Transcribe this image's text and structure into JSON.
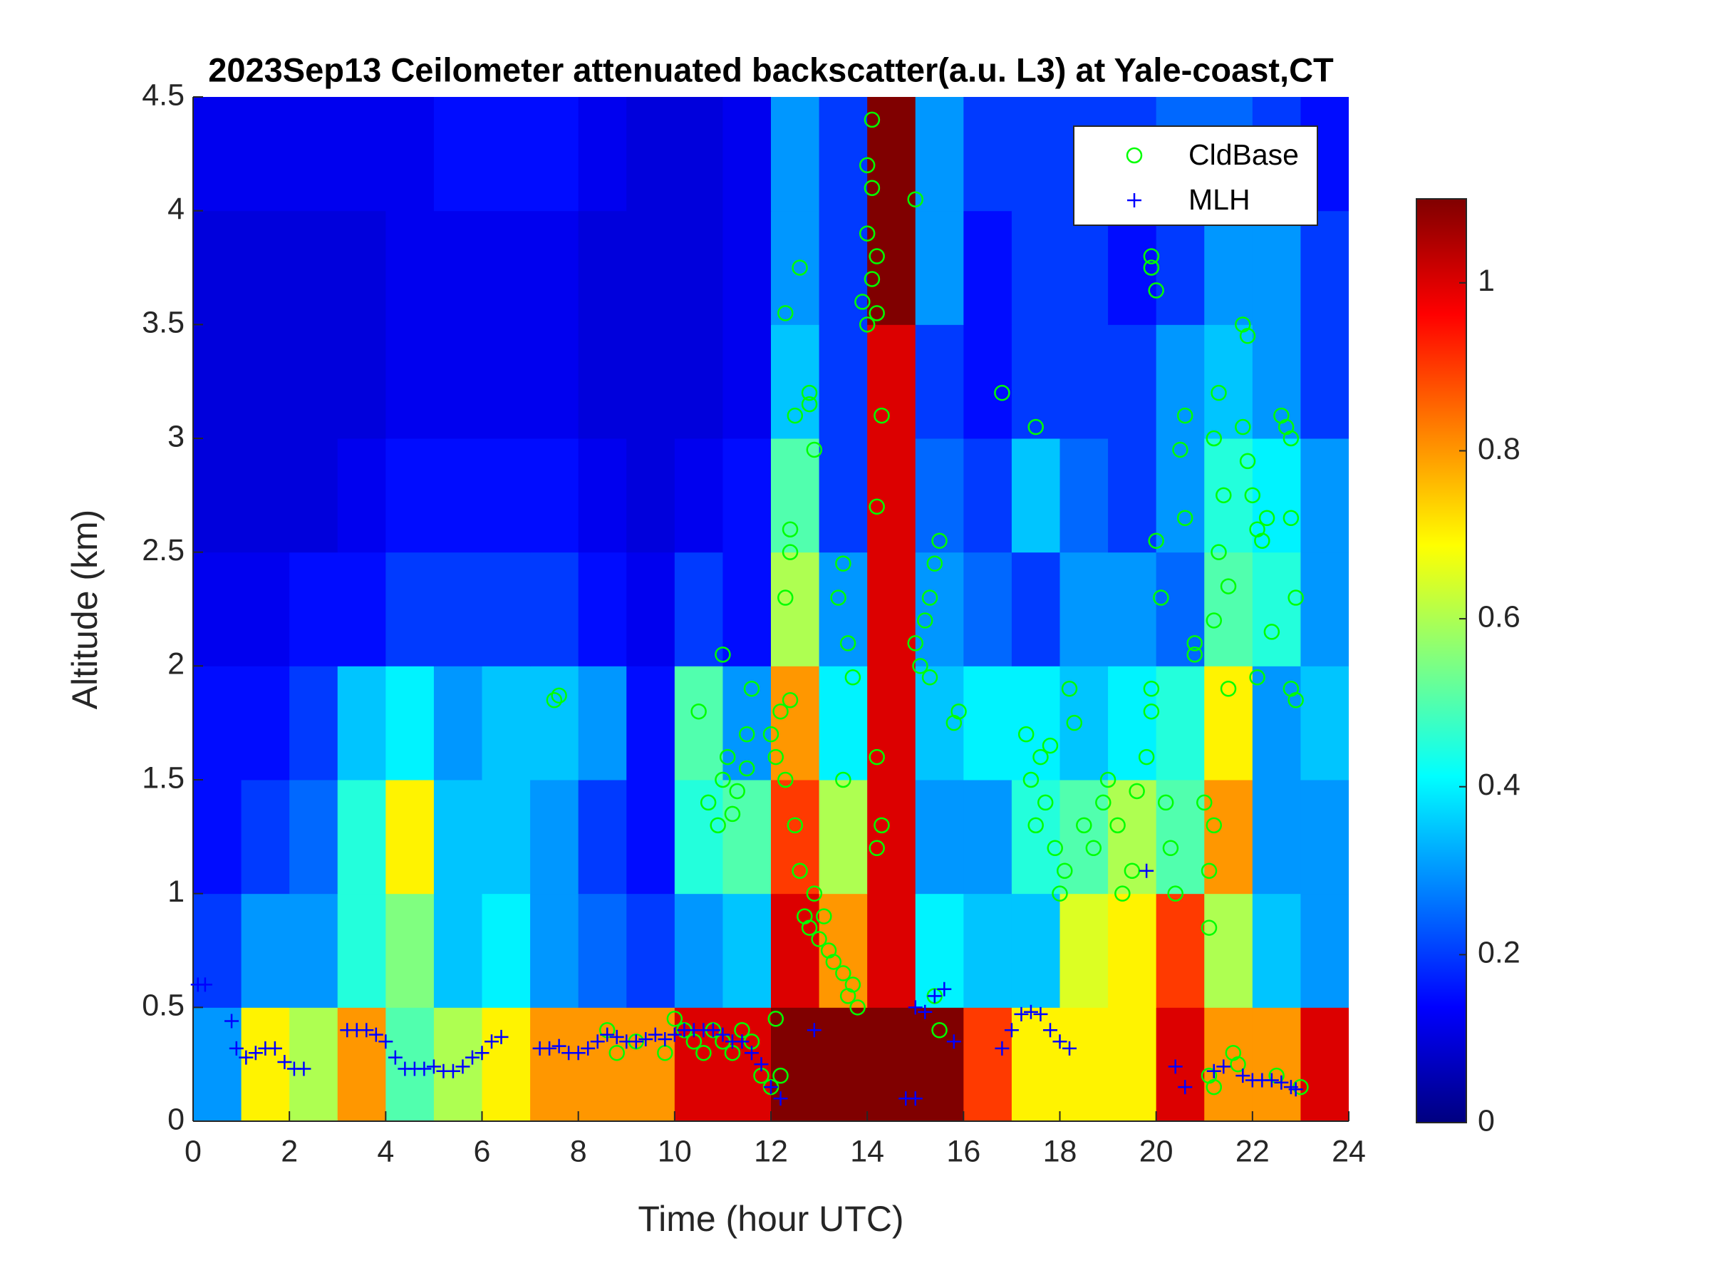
{
  "chart_data": {
    "type": "heatmap",
    "title": "2023Sep13 Ceilometer attenuated backscatter(a.u. L3) at Yale-coast,CT",
    "xlabel": "Time (hour UTC)",
    "ylabel": "Altitude (km)",
    "xlim": [
      0,
      24
    ],
    "xticks": [
      0,
      2,
      4,
      6,
      8,
      10,
      12,
      14,
      16,
      18,
      20,
      22,
      24
    ],
    "ylim": [
      0,
      4.5
    ],
    "yticks": [
      0,
      0.5,
      1,
      1.5,
      2,
      2.5,
      3,
      3.5,
      4,
      4.5
    ],
    "colormap": "jet",
    "clim": [
      0,
      1.1
    ],
    "cticks": [
      0,
      0.2,
      0.4,
      0.6,
      0.8,
      1
    ],
    "legend": "upper right",
    "heatmap": {
      "x": [
        0,
        1,
        2,
        3,
        4,
        5,
        6,
        7,
        8,
        9,
        10,
        11,
        12,
        13,
        14,
        15,
        16,
        17,
        18,
        19,
        20,
        21,
        22,
        23,
        24
      ],
      "y": [
        0,
        0.5,
        1,
        1.5,
        2,
        2.5,
        3,
        3.5,
        4,
        4.5
      ],
      "z": [
        [
          0.3,
          0.7,
          0.6,
          0.8,
          0.5,
          0.6,
          0.7,
          0.8,
          0.8,
          0.8,
          1.0,
          1.0,
          1.1,
          1.1,
          1.1,
          1.1,
          0.9,
          0.7,
          0.7,
          0.7,
          1.0,
          0.8,
          0.8,
          1.0
        ],
        [
          0.2,
          0.3,
          0.3,
          0.45,
          0.55,
          0.35,
          0.4,
          0.3,
          0.25,
          0.2,
          0.3,
          0.35,
          1.0,
          0.8,
          1.0,
          0.4,
          0.35,
          0.35,
          0.65,
          0.7,
          0.9,
          0.6,
          0.35,
          0.3
        ],
        [
          0.15,
          0.2,
          0.25,
          0.45,
          0.7,
          0.35,
          0.35,
          0.3,
          0.2,
          0.15,
          0.45,
          0.5,
          0.9,
          0.6,
          1.0,
          0.3,
          0.3,
          0.45,
          0.5,
          0.6,
          0.5,
          0.8,
          0.3,
          0.3
        ],
        [
          0.15,
          0.15,
          0.2,
          0.35,
          0.4,
          0.3,
          0.35,
          0.35,
          0.3,
          0.15,
          0.5,
          0.3,
          0.8,
          0.4,
          1.0,
          0.35,
          0.4,
          0.4,
          0.35,
          0.4,
          0.45,
          0.7,
          0.3,
          0.35
        ],
        [
          0.12,
          0.12,
          0.15,
          0.15,
          0.2,
          0.2,
          0.2,
          0.2,
          0.15,
          0.12,
          0.2,
          0.15,
          0.6,
          0.3,
          1.0,
          0.3,
          0.25,
          0.2,
          0.3,
          0.3,
          0.25,
          0.5,
          0.45,
          0.3
        ],
        [
          0.1,
          0.1,
          0.1,
          0.12,
          0.15,
          0.15,
          0.15,
          0.15,
          0.12,
          0.1,
          0.12,
          0.15,
          0.5,
          0.2,
          1.0,
          0.25,
          0.2,
          0.35,
          0.25,
          0.2,
          0.3,
          0.45,
          0.4,
          0.3
        ],
        [
          0.1,
          0.1,
          0.1,
          0.1,
          0.12,
          0.12,
          0.12,
          0.12,
          0.1,
          0.1,
          0.1,
          0.12,
          0.35,
          0.2,
          1.0,
          0.2,
          0.15,
          0.2,
          0.2,
          0.2,
          0.3,
          0.35,
          0.3,
          0.2
        ],
        [
          0.1,
          0.1,
          0.1,
          0.1,
          0.12,
          0.12,
          0.12,
          0.12,
          0.1,
          0.1,
          0.1,
          0.12,
          0.3,
          0.2,
          1.1,
          0.3,
          0.15,
          0.2,
          0.2,
          0.15,
          0.2,
          0.3,
          0.3,
          0.2
        ],
        [
          0.12,
          0.12,
          0.12,
          0.12,
          0.12,
          0.15,
          0.15,
          0.15,
          0.12,
          0.1,
          0.1,
          0.12,
          0.3,
          0.2,
          1.1,
          0.3,
          0.2,
          0.2,
          0.2,
          0.2,
          0.25,
          0.25,
          0.2,
          0.15
        ]
      ]
    },
    "series": [
      {
        "name": "CldBase",
        "color": "#00ff00",
        "marker": "circle",
        "x": [
          7.5,
          7.6,
          8.6,
          8.8,
          9.2,
          9.8,
          10,
          10.2,
          10.4,
          10.6,
          10.8,
          11,
          11.2,
          11.4,
          11.6,
          11.8,
          12,
          12.1,
          12.2,
          10.7,
          10.9,
          11,
          11.1,
          11.2,
          11.3,
          11.5,
          11.6,
          11,
          10.5,
          11.5,
          12,
          12.1,
          12.2,
          12.3,
          12.4,
          12.5,
          12.6,
          12.7,
          12.8,
          12.9,
          13,
          13.1,
          13.2,
          13.3,
          13.5,
          13.6,
          13.7,
          13.8,
          12.3,
          12.4,
          12.4,
          12.5,
          12.8,
          12.8,
          12.9,
          12.3,
          12.6,
          13.4,
          13.5,
          13.6,
          13.7,
          13.5,
          14,
          13.9,
          14.1,
          14.2,
          14,
          14.1,
          14,
          14.1,
          14.2,
          14.3,
          14.2,
          14.2,
          14.3,
          14.2,
          15,
          15,
          15.1,
          15.2,
          15.3,
          15.4,
          15.5,
          15.3,
          15.8,
          15.9,
          15.4,
          15.5,
          16.8,
          17.5,
          17.3,
          17.4,
          17.5,
          17.6,
          17.7,
          17.8,
          17.9,
          18,
          18.1,
          18.2,
          18.3,
          18.5,
          18.7,
          18.9,
          19,
          19.2,
          19.3,
          19.5,
          19.6,
          19.8,
          19.9,
          19.9,
          19.9,
          20,
          20.1,
          20,
          19.9,
          20.2,
          20.3,
          20.4,
          20.5,
          20.6,
          20.6,
          20.8,
          20.8,
          21,
          21.1,
          21.1,
          21.2,
          21.2,
          21.3,
          21.2,
          21.3,
          21.5,
          21.5,
          21.4,
          21.1,
          21.2,
          21.6,
          21.7,
          21.8,
          21.9,
          21.8,
          21.9,
          22,
          22.1,
          22.2,
          22.3,
          22.4,
          22.1,
          22.6,
          22.7,
          22.8,
          22.8,
          22.9,
          22.8,
          22.9,
          22.5,
          23
        ],
        "values": [
          1.85,
          1.87,
          0.4,
          0.3,
          0.35,
          0.3,
          0.45,
          0.4,
          0.35,
          0.3,
          0.4,
          0.35,
          0.3,
          0.4,
          0.35,
          0.2,
          0.15,
          0.45,
          0.2,
          1.4,
          1.3,
          1.5,
          1.6,
          1.35,
          1.45,
          1.55,
          1.9,
          2.05,
          1.8,
          1.7,
          1.7,
          1.6,
          1.8,
          1.5,
          1.85,
          1.3,
          1.1,
          0.9,
          0.85,
          1.0,
          0.8,
          0.9,
          0.75,
          0.7,
          0.65,
          0.55,
          0.6,
          0.5,
          2.3,
          2.5,
          2.6,
          3.1,
          3.15,
          3.2,
          2.95,
          3.55,
          3.75,
          2.3,
          2.45,
          2.1,
          1.95,
          1.5,
          3.5,
          3.6,
          3.7,
          3.55,
          3.9,
          4.1,
          4.2,
          4.4,
          3.8,
          3.1,
          2.7,
          1.6,
          1.3,
          1.2,
          4.05,
          2.1,
          2.0,
          2.2,
          2.3,
          2.45,
          2.55,
          1.95,
          1.75,
          1.8,
          0.55,
          0.4,
          3.2,
          3.05,
          1.7,
          1.5,
          1.3,
          1.6,
          1.4,
          1.65,
          1.2,
          1.0,
          1.1,
          1.9,
          1.75,
          1.3,
          1.2,
          1.4,
          1.5,
          1.3,
          1.0,
          1.1,
          1.45,
          1.6,
          1.8,
          3.8,
          3.75,
          3.65,
          2.3,
          2.55,
          1.9,
          1.4,
          1.2,
          1.0,
          2.95,
          2.65,
          3.1,
          2.1,
          2.05,
          1.4,
          1.1,
          0.85,
          1.3,
          2.2,
          3.2,
          3.0,
          2.5,
          2.35,
          1.9,
          2.75,
          0.2,
          0.15,
          0.3,
          0.25,
          3.5,
          3.45,
          3.05,
          2.9,
          2.75,
          2.6,
          2.55,
          2.65,
          2.15,
          1.95,
          3.1,
          3.05,
          3.0,
          2.65,
          2.3,
          1.9,
          1.85,
          0.2,
          0.15
        ]
      },
      {
        "name": "MLH",
        "color": "#0000ff",
        "marker": "plus",
        "x": [
          0.1,
          0.25,
          0.8,
          0.9,
          1.1,
          1.3,
          1.5,
          1.7,
          1.9,
          2.1,
          2.3,
          3.2,
          3.4,
          3.6,
          3.8,
          4.0,
          4.2,
          4.4,
          4.6,
          4.8,
          5.0,
          5.2,
          5.4,
          5.6,
          5.8,
          6.0,
          6.2,
          6.4,
          7.2,
          7.4,
          7.6,
          7.8,
          8.0,
          8.2,
          8.4,
          8.6,
          8.8,
          9.0,
          9.2,
          9.4,
          9.6,
          9.8,
          10.0,
          10.2,
          10.4,
          10.6,
          10.8,
          11.0,
          11.2,
          11.4,
          11.6,
          11.8,
          12.0,
          12.2,
          12.9,
          14.8,
          15.0,
          15.0,
          15.2,
          15.4,
          15.6,
          15.8,
          16.8,
          17.0,
          17.2,
          17.4,
          17.6,
          17.8,
          18.0,
          18.2,
          19.8,
          20.4,
          20.6,
          21.2,
          21.4,
          21.8,
          22,
          22.2,
          22.4,
          22.6,
          22.8,
          22.9
        ],
        "values": [
          0.6,
          0.6,
          0.44,
          0.32,
          0.28,
          0.3,
          0.32,
          0.32,
          0.26,
          0.23,
          0.23,
          0.4,
          0.4,
          0.4,
          0.38,
          0.35,
          0.28,
          0.23,
          0.23,
          0.23,
          0.24,
          0.22,
          0.22,
          0.24,
          0.28,
          0.3,
          0.35,
          0.37,
          0.32,
          0.32,
          0.33,
          0.3,
          0.3,
          0.32,
          0.35,
          0.38,
          0.37,
          0.35,
          0.35,
          0.36,
          0.38,
          0.36,
          0.38,
          0.4,
          0.4,
          0.4,
          0.4,
          0.38,
          0.35,
          0.35,
          0.3,
          0.25,
          0.15,
          0.1,
          0.4,
          0.1,
          0.1,
          0.5,
          0.48,
          0.55,
          0.58,
          0.35,
          0.32,
          0.4,
          0.47,
          0.48,
          0.47,
          0.4,
          0.35,
          0.32,
          1.1,
          0.24,
          0.15,
          0.22,
          0.24,
          0.2,
          0.18,
          0.18,
          0.18,
          0.17,
          0.15,
          0.14
        ]
      }
    ]
  }
}
